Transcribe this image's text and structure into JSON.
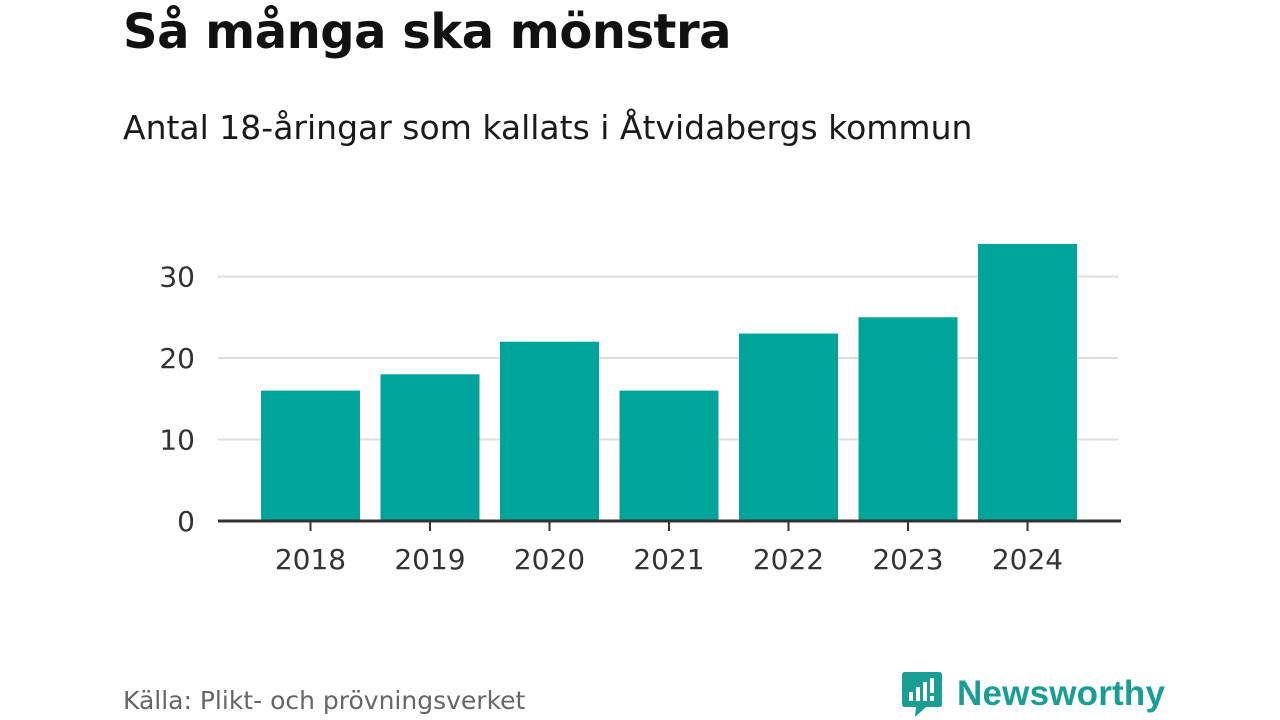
{
  "header": {
    "title": "Så många ska mönstra",
    "subtitle": "Antal 18-åringar som kallats i Åtvidabergs kommun"
  },
  "chart_data": {
    "type": "bar",
    "title": "Så många ska mönstra",
    "subtitle": "Antal 18-åringar som kallats i Åtvidabergs kommun",
    "categories": [
      "2018",
      "2019",
      "2020",
      "2021",
      "2022",
      "2023",
      "2024"
    ],
    "values": [
      16,
      18,
      22,
      16,
      23,
      25,
      34
    ],
    "xlabel": "",
    "ylabel": "",
    "ylim": [
      0,
      34
    ],
    "yticks": [
      0,
      10,
      20,
      30
    ],
    "grid": true,
    "bar_color": "#00a49a"
  },
  "footer": {
    "source": "Källa: Plikt- och prövningsverket",
    "brand_name": "Newsworthy",
    "brand_icon": "newsworthy-logo-icon",
    "brand_color": "#1a9e93"
  }
}
